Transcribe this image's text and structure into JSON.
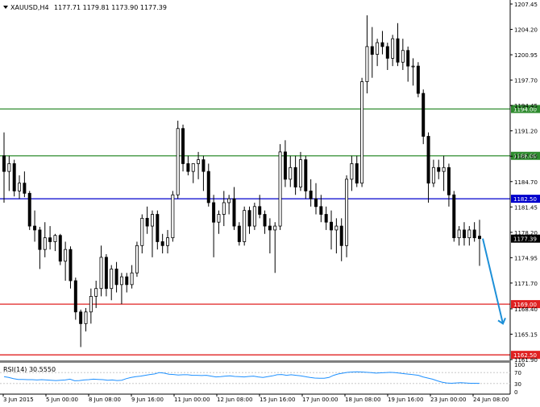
{
  "header": {
    "symbol_label": "XAUUSD,H4",
    "ohlc_text": "1177.71 1179.81 1173.90 1177.39"
  },
  "rsi_panel": {
    "label": "RSI(14) 30.5550"
  },
  "colors": {
    "background": "#ffffff",
    "candle": "#000000",
    "green_level": "#2e8b2e",
    "blue_level": "#0000cc",
    "red_level": "#e02020",
    "arrow": "#1e90d8",
    "rsi_line": "#1e90ff",
    "panel_separator": "#808080"
  },
  "chart_data": [
    {
      "type": "candlestick",
      "title": "XAUUSD,H4",
      "y_axis_ticks": [
        "1207.45",
        "1204.20",
        "1200.95",
        "1197.70",
        "1194.45",
        "1191.20",
        "1187.95",
        "1184.70",
        "1181.45",
        "1178.20",
        "1174.95",
        "1171.70",
        "1168.40",
        "1165.15",
        "1161.90"
      ],
      "ylim": [
        1161.9,
        1207.45
      ],
      "x_axis_ticks": [
        "3 Jun 2015",
        "5 Jun 00:00",
        "8 Jun 08:00",
        "9 Jun 16:00",
        "11 Jun 00:00",
        "12 Jun 08:00",
        "15 Jun 16:00",
        "17 Jun 00:00",
        "18 Jun 08:00",
        "19 Jun 16:00",
        "23 Jun 00:00",
        "24 Jun 08:00"
      ],
      "horizontal_levels": [
        {
          "value": 1194.0,
          "label": "1194.00",
          "color": "green"
        },
        {
          "value": 1188.0,
          "label": "1188.00",
          "color": "green"
        },
        {
          "value": 1182.5,
          "label": "1182.50",
          "color": "blue"
        },
        {
          "value": 1169.0,
          "label": "1169.00",
          "color": "red"
        },
        {
          "value": 1162.5,
          "label": "1162.50",
          "color": "red"
        }
      ],
      "current_price": {
        "value": 1177.39,
        "label": "1177.39"
      },
      "projection_arrow": {
        "from": 1177.4,
        "to": 1166.5
      },
      "candles": [
        {
          "o": 1188.0,
          "h": 1191.0,
          "l": 1182.0,
          "c": 1186.0
        },
        {
          "o": 1186.0,
          "h": 1188.0,
          "l": 1183.5,
          "c": 1187.0
        },
        {
          "o": 1187.0,
          "h": 1187.5,
          "l": 1182.8,
          "c": 1183.5
        },
        {
          "o": 1183.5,
          "h": 1185.5,
          "l": 1182.5,
          "c": 1184.5
        },
        {
          "o": 1184.5,
          "h": 1186.0,
          "l": 1182.7,
          "c": 1183.2
        },
        {
          "o": 1183.2,
          "h": 1183.5,
          "l": 1178.5,
          "c": 1179.0
        },
        {
          "o": 1179.0,
          "h": 1181.0,
          "l": 1177.0,
          "c": 1178.5
        },
        {
          "o": 1178.5,
          "h": 1178.9,
          "l": 1173.5,
          "c": 1176.0
        },
        {
          "o": 1176.0,
          "h": 1179.5,
          "l": 1175.0,
          "c": 1177.5
        },
        {
          "o": 1177.5,
          "h": 1179.0,
          "l": 1176.0,
          "c": 1177.0
        },
        {
          "o": 1177.0,
          "h": 1178.0,
          "l": 1175.8,
          "c": 1177.8
        },
        {
          "o": 1177.8,
          "h": 1178.0,
          "l": 1174.0,
          "c": 1174.5
        },
        {
          "o": 1174.5,
          "h": 1177.0,
          "l": 1172.0,
          "c": 1176.0
        },
        {
          "o": 1176.0,
          "h": 1176.4,
          "l": 1171.0,
          "c": 1172.0
        },
        {
          "o": 1172.0,
          "h": 1172.4,
          "l": 1167.0,
          "c": 1168.0
        },
        {
          "o": 1168.0,
          "h": 1168.3,
          "l": 1163.5,
          "c": 1166.5
        },
        {
          "o": 1166.5,
          "h": 1168.5,
          "l": 1165.5,
          "c": 1168.0
        },
        {
          "o": 1168.0,
          "h": 1171.0,
          "l": 1166.5,
          "c": 1170.0
        },
        {
          "o": 1170.0,
          "h": 1172.0,
          "l": 1168.5,
          "c": 1171.0
        },
        {
          "o": 1171.0,
          "h": 1176.5,
          "l": 1170.0,
          "c": 1175.0
        },
        {
          "o": 1175.0,
          "h": 1175.4,
          "l": 1170.0,
          "c": 1171.0
        },
        {
          "o": 1171.0,
          "h": 1174.0,
          "l": 1169.5,
          "c": 1173.5
        },
        {
          "o": 1173.5,
          "h": 1174.4,
          "l": 1170.5,
          "c": 1171.5
        },
        {
          "o": 1171.5,
          "h": 1173.0,
          "l": 1169.0,
          "c": 1172.5
        },
        {
          "o": 1172.5,
          "h": 1173.0,
          "l": 1170.5,
          "c": 1171.5
        },
        {
          "o": 1171.5,
          "h": 1174.0,
          "l": 1171.0,
          "c": 1173.0
        },
        {
          "o": 1173.0,
          "h": 1177.0,
          "l": 1172.5,
          "c": 1176.5
        },
        {
          "o": 1176.5,
          "h": 1180.5,
          "l": 1175.5,
          "c": 1180.0
        },
        {
          "o": 1180.0,
          "h": 1181.5,
          "l": 1178.0,
          "c": 1179.0
        },
        {
          "o": 1179.0,
          "h": 1181.0,
          "l": 1175.0,
          "c": 1180.5
        },
        {
          "o": 1180.5,
          "h": 1181.0,
          "l": 1176.0,
          "c": 1177.0
        },
        {
          "o": 1177.0,
          "h": 1178.0,
          "l": 1175.5,
          "c": 1176.5
        },
        {
          "o": 1176.5,
          "h": 1178.5,
          "l": 1175.5,
          "c": 1177.5
        },
        {
          "o": 1177.5,
          "h": 1183.5,
          "l": 1177.0,
          "c": 1183.0
        },
        {
          "o": 1183.0,
          "h": 1192.5,
          "l": 1182.5,
          "c": 1191.5
        },
        {
          "o": 1191.5,
          "h": 1192.0,
          "l": 1186.0,
          "c": 1187.0
        },
        {
          "o": 1187.0,
          "h": 1188.0,
          "l": 1185.5,
          "c": 1186.0
        },
        {
          "o": 1186.0,
          "h": 1187.0,
          "l": 1184.5,
          "c": 1187.0
        },
        {
          "o": 1187.0,
          "h": 1188.5,
          "l": 1185.0,
          "c": 1187.5
        },
        {
          "o": 1187.5,
          "h": 1188.0,
          "l": 1183.5,
          "c": 1186.0
        },
        {
          "o": 1186.0,
          "h": 1187.0,
          "l": 1181.5,
          "c": 1182.0
        },
        {
          "o": 1182.0,
          "h": 1183.0,
          "l": 1175.0,
          "c": 1179.5
        },
        {
          "o": 1179.5,
          "h": 1181.0,
          "l": 1178.0,
          "c": 1180.5
        },
        {
          "o": 1180.5,
          "h": 1183.5,
          "l": 1179.0,
          "c": 1182.0
        },
        {
          "o": 1182.0,
          "h": 1183.0,
          "l": 1180.5,
          "c": 1182.5
        },
        {
          "o": 1182.5,
          "h": 1184.0,
          "l": 1178.5,
          "c": 1179.0
        },
        {
          "o": 1179.0,
          "h": 1179.5,
          "l": 1176.5,
          "c": 1177.0
        },
        {
          "o": 1177.0,
          "h": 1181.5,
          "l": 1176.5,
          "c": 1181.0
        },
        {
          "o": 1181.0,
          "h": 1181.5,
          "l": 1178.0,
          "c": 1179.0
        },
        {
          "o": 1179.0,
          "h": 1182.0,
          "l": 1178.5,
          "c": 1181.5
        },
        {
          "o": 1181.5,
          "h": 1183.0,
          "l": 1180.0,
          "c": 1180.5
        },
        {
          "o": 1180.5,
          "h": 1181.0,
          "l": 1178.0,
          "c": 1179.0
        },
        {
          "o": 1179.0,
          "h": 1180.0,
          "l": 1175.5,
          "c": 1178.5
        },
        {
          "o": 1178.5,
          "h": 1179.5,
          "l": 1173.0,
          "c": 1179.0
        },
        {
          "o": 1179.0,
          "h": 1189.5,
          "l": 1178.5,
          "c": 1188.5
        },
        {
          "o": 1188.5,
          "h": 1190.0,
          "l": 1184.0,
          "c": 1185.0
        },
        {
          "o": 1185.0,
          "h": 1188.0,
          "l": 1184.0,
          "c": 1186.5
        },
        {
          "o": 1186.5,
          "h": 1188.0,
          "l": 1183.0,
          "c": 1184.0
        },
        {
          "o": 1184.0,
          "h": 1188.5,
          "l": 1183.5,
          "c": 1187.5
        },
        {
          "o": 1187.5,
          "h": 1188.0,
          "l": 1182.5,
          "c": 1183.5
        },
        {
          "o": 1183.5,
          "h": 1185.0,
          "l": 1181.5,
          "c": 1182.5
        },
        {
          "o": 1182.5,
          "h": 1184.5,
          "l": 1180.5,
          "c": 1181.5
        },
        {
          "o": 1181.5,
          "h": 1183.0,
          "l": 1179.5,
          "c": 1180.5
        },
        {
          "o": 1180.5,
          "h": 1181.5,
          "l": 1178.5,
          "c": 1179.5
        },
        {
          "o": 1179.5,
          "h": 1181.0,
          "l": 1176.0,
          "c": 1178.5
        },
        {
          "o": 1178.5,
          "h": 1180.0,
          "l": 1175.5,
          "c": 1179.0
        },
        {
          "o": 1179.0,
          "h": 1180.0,
          "l": 1174.5,
          "c": 1176.5
        },
        {
          "o": 1176.5,
          "h": 1185.5,
          "l": 1175.0,
          "c": 1185.0
        },
        {
          "o": 1185.0,
          "h": 1188.0,
          "l": 1183.5,
          "c": 1187.0
        },
        {
          "o": 1187.0,
          "h": 1188.0,
          "l": 1184.0,
          "c": 1184.5
        },
        {
          "o": 1184.5,
          "h": 1198.0,
          "l": 1184.0,
          "c": 1197.5
        },
        {
          "o": 1197.5,
          "h": 1206.0,
          "l": 1196.0,
          "c": 1202.0
        },
        {
          "o": 1202.0,
          "h": 1204.5,
          "l": 1198.0,
          "c": 1201.0
        },
        {
          "o": 1201.0,
          "h": 1203.0,
          "l": 1199.5,
          "c": 1202.5
        },
        {
          "o": 1202.5,
          "h": 1204.0,
          "l": 1201.0,
          "c": 1202.0
        },
        {
          "o": 1202.0,
          "h": 1202.5,
          "l": 1199.0,
          "c": 1200.5
        },
        {
          "o": 1200.5,
          "h": 1203.5,
          "l": 1199.5,
          "c": 1203.0
        },
        {
          "o": 1203.0,
          "h": 1205.0,
          "l": 1199.5,
          "c": 1200.0
        },
        {
          "o": 1200.0,
          "h": 1203.0,
          "l": 1199.0,
          "c": 1201.5
        },
        {
          "o": 1201.5,
          "h": 1202.0,
          "l": 1197.5,
          "c": 1199.5
        },
        {
          "o": 1199.5,
          "h": 1200.5,
          "l": 1197.0,
          "c": 1199.5
        },
        {
          "o": 1199.5,
          "h": 1200.0,
          "l": 1195.5,
          "c": 1196.0
        },
        {
          "o": 1196.0,
          "h": 1196.5,
          "l": 1189.5,
          "c": 1190.5
        },
        {
          "o": 1190.5,
          "h": 1191.0,
          "l": 1182.0,
          "c": 1184.5
        },
        {
          "o": 1184.5,
          "h": 1187.5,
          "l": 1184.0,
          "c": 1186.5
        },
        {
          "o": 1186.5,
          "h": 1187.5,
          "l": 1185.0,
          "c": 1186.0
        },
        {
          "o": 1186.0,
          "h": 1188.0,
          "l": 1183.5,
          "c": 1186.5
        },
        {
          "o": 1186.5,
          "h": 1187.0,
          "l": 1181.5,
          "c": 1183.0
        },
        {
          "o": 1183.0,
          "h": 1183.5,
          "l": 1177.0,
          "c": 1177.5
        },
        {
          "o": 1177.5,
          "h": 1179.0,
          "l": 1176.5,
          "c": 1178.5
        },
        {
          "o": 1178.5,
          "h": 1179.5,
          "l": 1176.5,
          "c": 1177.5
        },
        {
          "o": 1177.5,
          "h": 1179.0,
          "l": 1176.5,
          "c": 1178.5
        },
        {
          "o": 1178.5,
          "h": 1179.5,
          "l": 1177.0,
          "c": 1177.5
        },
        {
          "o": 1177.71,
          "h": 1179.81,
          "l": 1173.9,
          "c": 1177.39
        }
      ]
    },
    {
      "type": "line",
      "title": "RSI(14) 30.5550",
      "y_axis_ticks": [
        "100",
        "70",
        "30",
        "0"
      ],
      "ylim": [
        0,
        100
      ],
      "series": [
        {
          "values": [
            55,
            52,
            48,
            45,
            45,
            44,
            44,
            43,
            44,
            43,
            42,
            41,
            42,
            43,
            46,
            40,
            41,
            43,
            44,
            46,
            45,
            44,
            42,
            43,
            41,
            42,
            48,
            52,
            55,
            57,
            60,
            63,
            65,
            70,
            68,
            64,
            63,
            61,
            62,
            62,
            60,
            60,
            59,
            60,
            57,
            54,
            55,
            57,
            58,
            56,
            55,
            54,
            56,
            57,
            54,
            52,
            55,
            58,
            62,
            63,
            60,
            62,
            60,
            58,
            55,
            52,
            50,
            49,
            49,
            52,
            60,
            65,
            68,
            71,
            72,
            73,
            72,
            71,
            70,
            68,
            69,
            70,
            71,
            70,
            68,
            66,
            64,
            62,
            60,
            54,
            50,
            46,
            40,
            35,
            32,
            31,
            32,
            33,
            32,
            31,
            31,
            30.5
          ]
        }
      ]
    }
  ]
}
